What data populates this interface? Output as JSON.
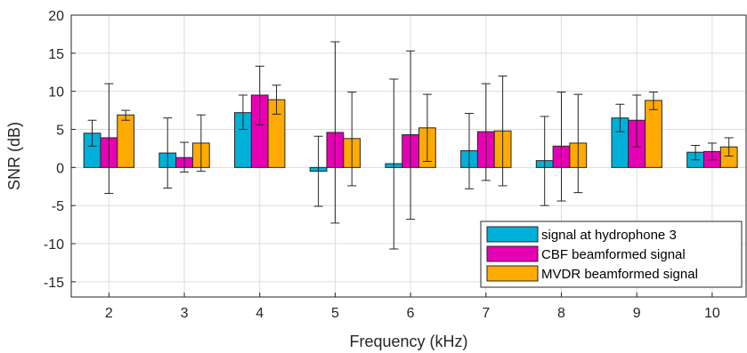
{
  "chart_data": {
    "type": "bar",
    "title": "",
    "xlabel": "Frequency (kHz)",
    "ylabel": "SNR (dB)",
    "ylim": [
      -17,
      20
    ],
    "yticks": [
      -15,
      -10,
      -5,
      0,
      5,
      10,
      15,
      20
    ],
    "grid": true,
    "legend_position": "bottom-right",
    "categories": [
      "2",
      "3",
      "4",
      "5",
      "6",
      "7",
      "8",
      "9",
      "10"
    ],
    "series": [
      {
        "name": "signal at hydrophone 3",
        "color": "#00b0d8",
        "values": [
          4.5,
          1.9,
          7.2,
          -0.5,
          0.5,
          2.2,
          0.9,
          6.5,
          2.0
        ],
        "error_low": [
          2.8,
          -2.7,
          5.0,
          -5.1,
          -10.7,
          -2.8,
          -5.0,
          4.7,
          1.0
        ],
        "error_high": [
          6.2,
          6.5,
          9.5,
          4.1,
          11.6,
          7.1,
          6.7,
          8.3,
          2.9
        ]
      },
      {
        "name": "CBF beamformed signal",
        "color": "#e600b4",
        "values": [
          3.9,
          1.3,
          9.5,
          4.6,
          4.3,
          4.7,
          2.8,
          6.2,
          2.1
        ],
        "error_low": [
          -3.4,
          -0.6,
          5.6,
          -7.3,
          -6.8,
          -1.7,
          -4.4,
          2.7,
          1.0
        ],
        "error_high": [
          11.0,
          3.3,
          13.3,
          16.5,
          15.3,
          11.0,
          9.9,
          9.5,
          3.2
        ]
      },
      {
        "name": "MVDR beamformed signal",
        "color": "#ffaa00",
        "values": [
          6.9,
          3.2,
          8.9,
          3.8,
          5.2,
          4.8,
          3.2,
          8.8,
          2.7
        ],
        "error_low": [
          6.2,
          -0.5,
          7.0,
          -2.4,
          0.8,
          -2.4,
          -3.3,
          7.6,
          1.5
        ],
        "error_high": [
          7.5,
          6.9,
          10.8,
          9.9,
          9.6,
          12.0,
          9.6,
          9.9,
          3.9
        ]
      }
    ]
  }
}
